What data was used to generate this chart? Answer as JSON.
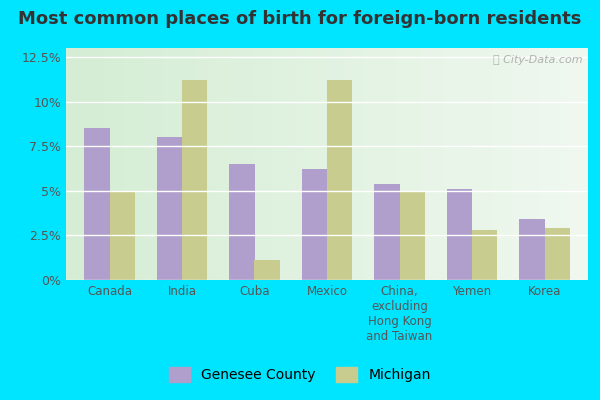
{
  "title": "Most common places of birth for foreign-born residents",
  "categories": [
    "Canada",
    "India",
    "Cuba",
    "Mexico",
    "China,\nexcluding\nHong Kong\nand Taiwan",
    "Yemen",
    "Korea"
  ],
  "genesee_values": [
    8.5,
    8.0,
    6.5,
    6.2,
    5.4,
    5.1,
    3.4
  ],
  "michigan_values": [
    5.0,
    11.2,
    1.1,
    11.2,
    5.0,
    2.8,
    2.9
  ],
  "genesee_color": "#b09fcc",
  "michigan_color": "#c8cc8f",
  "bar_width": 0.35,
  "ylim": [
    0,
    13
  ],
  "yticks": [
    0,
    2.5,
    5.0,
    7.5,
    10.0,
    12.5
  ],
  "ytick_labels": [
    "0%",
    "2.5%",
    "5%",
    "7.5%",
    "10%",
    "12.5%"
  ],
  "legend_genesee": "Genesee County",
  "legend_michigan": "Michigan",
  "plot_bg_left": "#d4edd4",
  "plot_bg_right": "#f0f8f0",
  "outer_background": "#00e5ff",
  "watermark": "City-Data.com",
  "title_fontsize": 13,
  "tick_fontsize": 9,
  "legend_fontsize": 10,
  "title_color": "#333333",
  "tick_color": "#555555"
}
